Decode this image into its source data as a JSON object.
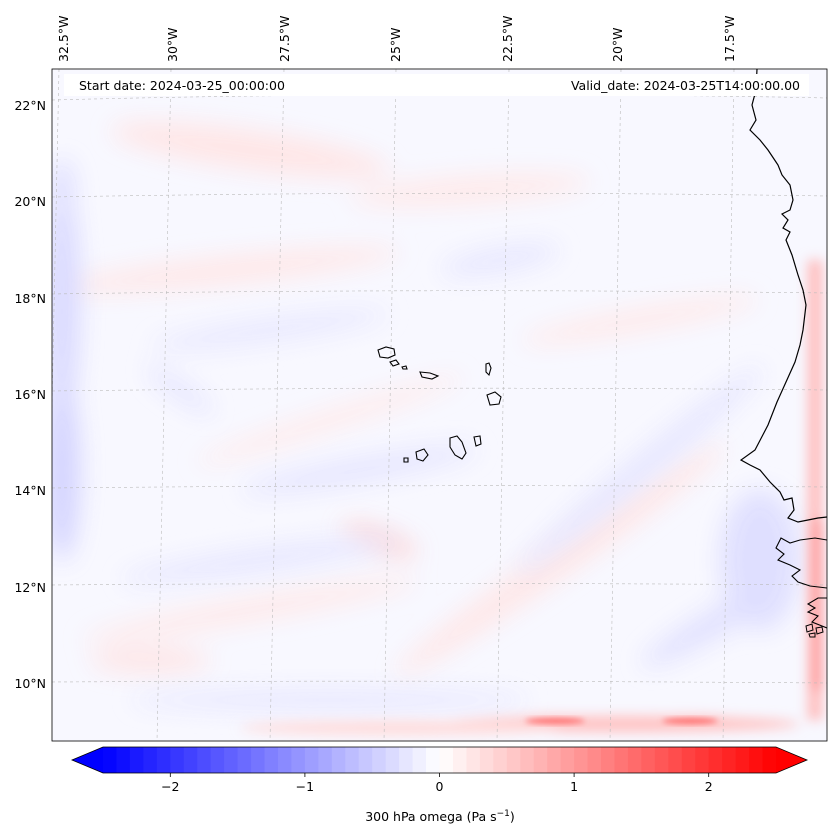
{
  "header": {
    "start_date": "Start date: 2024-03-25_00:00:00",
    "valid_date": "Valid_date: 2024-03-25T14:00:00.00"
  },
  "map": {
    "projection": "lambert-conformal",
    "lon_gridlines": [
      "32.5°W",
      "30°W",
      "27.5°W",
      "25°W",
      "22.5°W",
      "20°W",
      "17.5°W"
    ],
    "lat_gridlines": [
      "22°N",
      "20°N",
      "18°N",
      "16°N",
      "14°N",
      "12°N",
      "10°N"
    ],
    "features": [
      "Cape Verde islands",
      "West African coastline"
    ],
    "field": "300 hPa vertical velocity (omega), mostly near zero; stronger positive band along the southern edge and eastern edge"
  },
  "colorbar": {
    "label_main": "300 hPa omega (Pa s",
    "label_exp": "−1",
    "label_close": ")",
    "ticks": [
      "−2",
      "−1",
      "0",
      "1",
      "2"
    ],
    "tick_values": [
      -2,
      -1,
      0,
      1,
      2
    ],
    "range": [
      -2.5,
      2.5
    ],
    "extend": "both",
    "colormap": "bwr",
    "color_min": "#0000ff",
    "color_mid": "#ffffff",
    "color_max": "#ff0000"
  },
  "colors": {
    "gridline": "#bbbbbb",
    "coastline": "#000000",
    "background_field": "#f8f8ff"
  }
}
